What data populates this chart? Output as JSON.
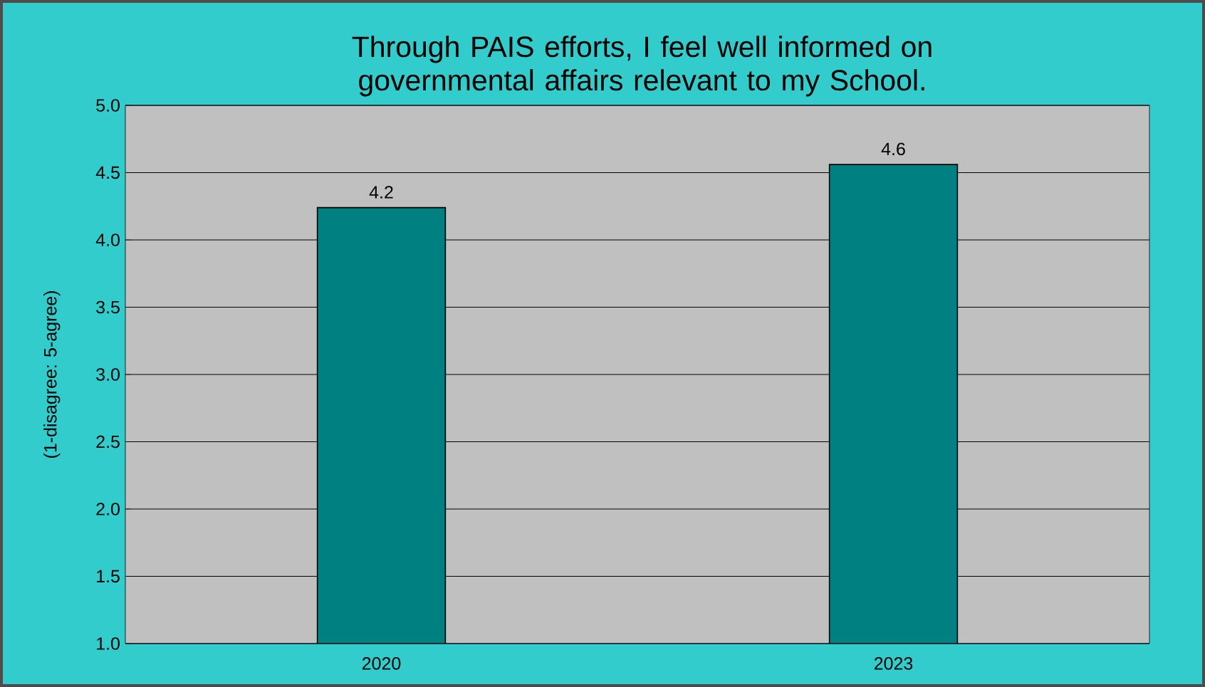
{
  "chart_data": {
    "type": "bar",
    "title": "Through PAIS efforts, I feel well informed on governmental affairs relevant to my School.",
    "ylabel": "(1-disagree: 5-agree)",
    "categories": [
      "2020",
      "2023"
    ],
    "values": [
      4.24,
      4.56
    ],
    "value_labels": [
      "4.2",
      "4.6"
    ],
    "color": "#008080",
    "ylim": [
      1.0,
      5.0
    ],
    "yticks": [
      {
        "value": 1.0,
        "label": "1.0"
      },
      {
        "value": 1.5,
        "label": "1.5"
      },
      {
        "value": 2.0,
        "label": "2.0"
      },
      {
        "value": 2.5,
        "label": "2.5"
      },
      {
        "value": 3.0,
        "label": "3.0"
      },
      {
        "value": 3.5,
        "label": "3.5"
      },
      {
        "value": 4.0,
        "label": "4.0"
      },
      {
        "value": 4.5,
        "label": "4.5"
      },
      {
        "value": 5.0,
        "label": "5.0"
      }
    ],
    "grid": "y"
  }
}
